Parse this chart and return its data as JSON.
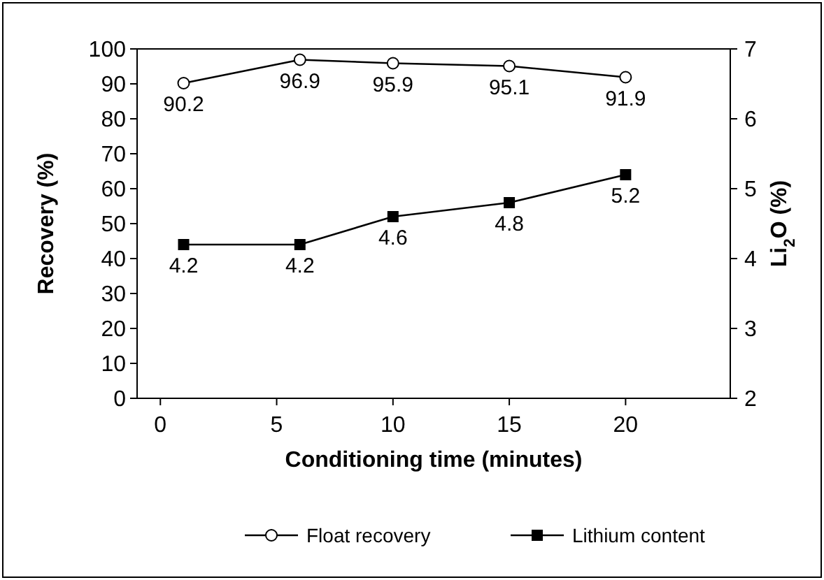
{
  "chart_data": {
    "type": "line",
    "xlabel": "Conditioning time (minutes)",
    "ylabel": "Recovery (%)",
    "y2label": "Li$_{2}$O (%)",
    "xlim": [
      -1,
      24.5
    ],
    "xticks": [
      0,
      5,
      10,
      15,
      20
    ],
    "ylim": [
      0,
      100
    ],
    "yticks": [
      0,
      10,
      20,
      30,
      40,
      50,
      60,
      70,
      80,
      90,
      100
    ],
    "y2lim": [
      2,
      7
    ],
    "y2ticks": [
      2,
      3,
      4,
      5,
      6,
      7
    ],
    "x": [
      1,
      6,
      10,
      15,
      20
    ],
    "data_labels": true,
    "grid": false,
    "legend": "bottom",
    "line_style": "solid",
    "series": [
      {
        "name": "Float recovery",
        "color": "#000000",
        "marker": "circle",
        "values": [
          90.2,
          96.9,
          95.9,
          95.1,
          91.9
        ]
      },
      {
        "name": "Lithium content",
        "color": "#000000",
        "marker": "square",
        "axis": "y2",
        "values": [
          4.2,
          4.2,
          4.6,
          4.8,
          5.2
        ]
      }
    ]
  }
}
